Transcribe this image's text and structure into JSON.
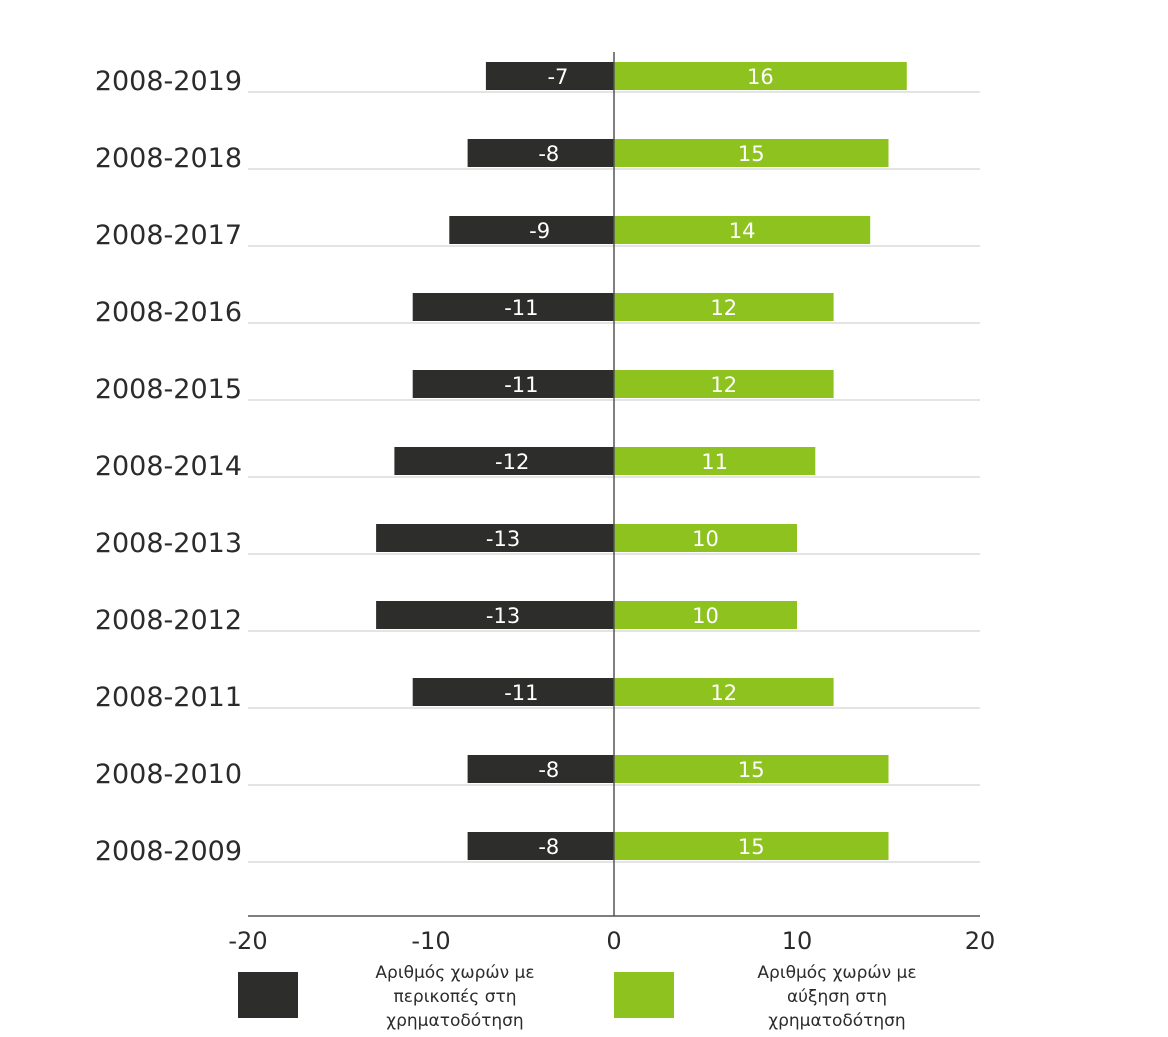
{
  "chart_data": {
    "type": "bar",
    "orientation": "horizontal",
    "stacked": "diverging",
    "categories": [
      "2008-2019",
      "2008-2018",
      "2008-2017",
      "2008-2016",
      "2008-2015",
      "2008-2014",
      "2008-2013",
      "2008-2012",
      "2008-2011",
      "2008-2010",
      "2008-2009"
    ],
    "series": [
      {
        "name": "Αριθμός χωρών με περικοπές στη χρηματοδότηση",
        "legend_lines": [
          "Αριθμός χωρών με",
          "περικοπές στη",
          "χρηματοδότηση"
        ],
        "color": "#2d2d2b",
        "values": [
          -7,
          -8,
          -9,
          -11,
          -11,
          -12,
          -13,
          -13,
          -11,
          -8,
          -8
        ]
      },
      {
        "name": "Αριθμός χωρών με αύξηση στη χρηματοδότηση",
        "legend_lines": [
          "Αριθμός χωρών με",
          "αύξηση στη",
          "χρηματοδότηση"
        ],
        "color": "#8dc21f",
        "values": [
          16,
          15,
          14,
          12,
          12,
          11,
          10,
          10,
          12,
          15,
          15
        ]
      }
    ],
    "xlim": [
      -20,
      20
    ],
    "xticks": [
      -20,
      -10,
      0,
      10,
      20
    ],
    "grid": false,
    "legend": "bottom"
  }
}
